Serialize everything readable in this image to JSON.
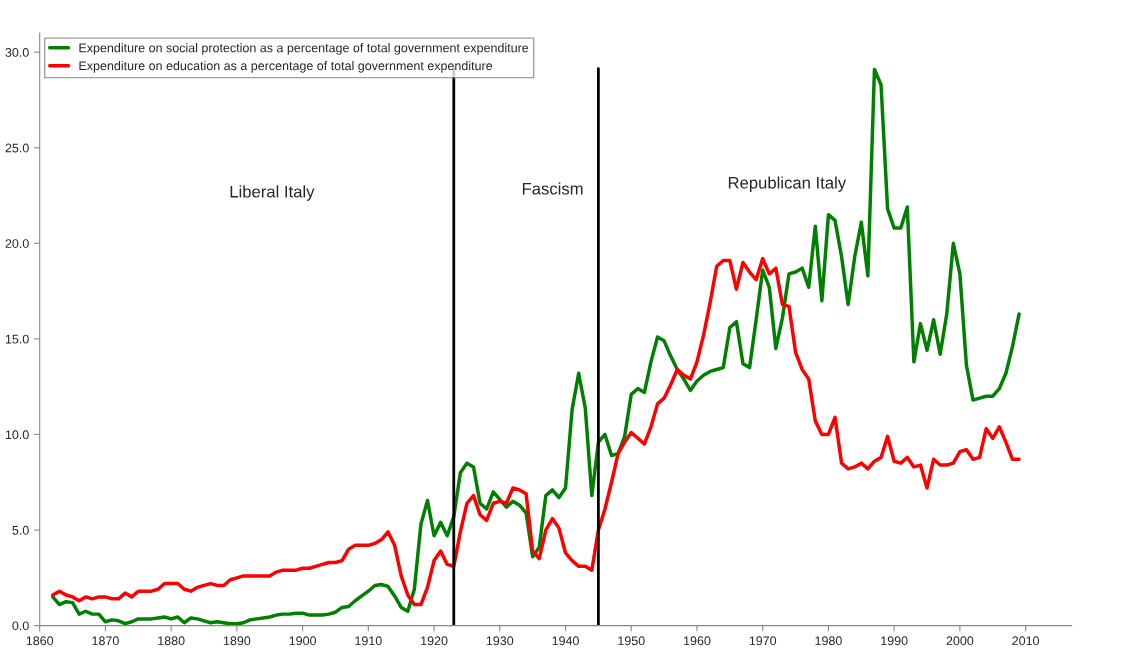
{
  "chart_data": {
    "type": "line",
    "x": [
      1862,
      1863,
      1864,
      1865,
      1866,
      1867,
      1868,
      1869,
      1870,
      1871,
      1872,
      1873,
      1874,
      1875,
      1876,
      1877,
      1878,
      1879,
      1880,
      1881,
      1882,
      1883,
      1884,
      1885,
      1886,
      1887,
      1888,
      1889,
      1890,
      1891,
      1892,
      1893,
      1894,
      1895,
      1896,
      1897,
      1898,
      1899,
      1900,
      1901,
      1902,
      1903,
      1904,
      1905,
      1906,
      1907,
      1908,
      1909,
      1910,
      1911,
      1912,
      1913,
      1914,
      1915,
      1916,
      1917,
      1918,
      1919,
      1920,
      1921,
      1922,
      1923,
      1924,
      1925,
      1926,
      1927,
      1928,
      1929,
      1930,
      1931,
      1932,
      1933,
      1934,
      1935,
      1936,
      1937,
      1938,
      1939,
      1940,
      1941,
      1942,
      1943,
      1944,
      1945,
      1946,
      1947,
      1948,
      1949,
      1950,
      1951,
      1952,
      1953,
      1954,
      1955,
      1956,
      1957,
      1958,
      1959,
      1960,
      1961,
      1962,
      1963,
      1964,
      1965,
      1966,
      1967,
      1968,
      1969,
      1970,
      1971,
      1972,
      1973,
      1974,
      1975,
      1976,
      1977,
      1978,
      1979,
      1980,
      1981,
      1982,
      1983,
      1984,
      1985,
      1986,
      1987,
      1988,
      1989,
      1990,
      1991,
      1992,
      1993,
      1994,
      1995,
      1996,
      1997,
      1998,
      1999,
      2000,
      2001,
      2002,
      2003,
      2004,
      2005,
      2006,
      2007,
      2008,
      2009
    ],
    "series": [
      {
        "name": "Expenditure on social protection as a percentage of total government expenditure",
        "color": "#008000",
        "values": [
          1.5,
          1.1,
          1.25,
          1.2,
          0.6,
          0.75,
          0.6,
          0.6,
          0.2,
          0.3,
          0.25,
          0.1,
          0.2,
          0.35,
          0.35,
          0.35,
          0.4,
          0.45,
          0.35,
          0.45,
          0.15,
          0.4,
          0.35,
          0.25,
          0.15,
          0.2,
          0.15,
          0.1,
          0.1,
          0.15,
          0.3,
          0.35,
          0.4,
          0.45,
          0.55,
          0.6,
          0.6,
          0.65,
          0.65,
          0.55,
          0.55,
          0.55,
          0.6,
          0.7,
          0.95,
          1.0,
          1.3,
          1.55,
          1.8,
          2.1,
          2.15,
          2.05,
          1.55,
          0.95,
          0.75,
          1.9,
          5.3,
          6.55,
          4.7,
          5.4,
          4.7,
          5.7,
          8.0,
          8.5,
          8.3,
          6.4,
          6.1,
          7.0,
          6.6,
          6.2,
          6.5,
          6.3,
          5.9,
          3.6,
          4.1,
          6.8,
          7.1,
          6.7,
          7.2,
          11.3,
          13.2,
          11.4,
          6.8,
          9.6,
          10.0,
          8.9,
          9.0,
          9.9,
          12.1,
          12.4,
          12.2,
          13.8,
          15.1,
          14.9,
          14.1,
          13.4,
          12.9,
          12.3,
          12.8,
          13.1,
          13.3,
          13.4,
          13.5,
          15.6,
          15.9,
          13.7,
          13.5,
          16.0,
          18.6,
          17.7,
          14.5,
          16.1,
          18.4,
          18.5,
          18.7,
          17.7,
          20.9,
          17.0,
          21.5,
          21.2,
          19.3,
          16.8,
          19.3,
          21.1,
          18.3,
          29.1,
          28.3,
          21.8,
          20.8,
          20.8,
          21.9,
          13.8,
          15.8,
          14.4,
          16.0,
          14.2,
          16.3,
          20.0,
          18.4,
          13.6,
          11.8,
          11.9,
          12.0,
          12.0,
          12.4,
          13.2,
          14.6,
          16.3
        ]
      },
      {
        "name": "Expenditure on education as a percentage of total government expenditure",
        "color": "#ff0000",
        "values": [
          1.6,
          1.8,
          1.6,
          1.5,
          1.3,
          1.5,
          1.4,
          1.5,
          1.5,
          1.4,
          1.4,
          1.7,
          1.5,
          1.8,
          1.8,
          1.8,
          1.9,
          2.2,
          2.2,
          2.2,
          1.9,
          1.8,
          2.0,
          2.1,
          2.2,
          2.1,
          2.1,
          2.4,
          2.5,
          2.6,
          2.6,
          2.6,
          2.6,
          2.6,
          2.8,
          2.9,
          2.9,
          2.9,
          3.0,
          3.0,
          3.1,
          3.2,
          3.3,
          3.3,
          3.4,
          4.0,
          4.2,
          4.2,
          4.2,
          4.3,
          4.5,
          4.9,
          4.2,
          2.6,
          1.6,
          1.1,
          1.1,
          2.0,
          3.4,
          3.9,
          3.2,
          3.1,
          4.9,
          6.4,
          6.8,
          5.8,
          5.5,
          6.4,
          6.5,
          6.4,
          7.2,
          7.1,
          6.9,
          3.9,
          3.5,
          5.0,
          5.6,
          5.1,
          3.8,
          3.4,
          3.1,
          3.1,
          2.9,
          5.0,
          6.1,
          7.5,
          9.0,
          9.6,
          10.1,
          9.8,
          9.5,
          10.4,
          11.6,
          11.9,
          12.6,
          13.4,
          13.1,
          12.9,
          13.8,
          15.2,
          16.9,
          18.8,
          19.1,
          19.1,
          17.6,
          19.0,
          18.5,
          18.1,
          19.2,
          18.4,
          18.7,
          16.8,
          16.7,
          14.3,
          13.4,
          12.9,
          10.7,
          10.0,
          10.0,
          10.9,
          8.5,
          8.2,
          8.3,
          8.5,
          8.2,
          8.6,
          8.8,
          9.9,
          8.6,
          8.5,
          8.8,
          8.3,
          8.4,
          7.2,
          8.7,
          8.4,
          8.4,
          8.5,
          9.1,
          9.2,
          8.7,
          8.8,
          10.3,
          9.8,
          10.4,
          9.6,
          8.7,
          8.7
        ]
      }
    ],
    "xlim": [
      1860,
      2017
    ],
    "xticks": [
      1860,
      1870,
      1880,
      1890,
      1900,
      1910,
      1920,
      1930,
      1940,
      1950,
      1960,
      1970,
      1980,
      1990,
      2000,
      2010
    ],
    "ylim": [
      0,
      31
    ],
    "yticks": [
      {
        "value": 0,
        "label": "0.0"
      },
      {
        "value": 5,
        "label": "5.0"
      },
      {
        "value": 10,
        "label": "10.0"
      },
      {
        "value": 15,
        "label": "15.0"
      },
      {
        "value": 20,
        "label": "20.0"
      },
      {
        "value": 25,
        "label": "25.0"
      },
      {
        "value": 30,
        "label": "30.0"
      }
    ],
    "ref_lines": [
      {
        "axis": "x",
        "value": 1923,
        "color": "#000000"
      },
      {
        "axis": "x",
        "value": 1945,
        "color": "#000000"
      }
    ],
    "annotations": [
      "Liberal Italy",
      "Fascism",
      "Republican Italy"
    ],
    "grid": false,
    "legend": "top left"
  }
}
